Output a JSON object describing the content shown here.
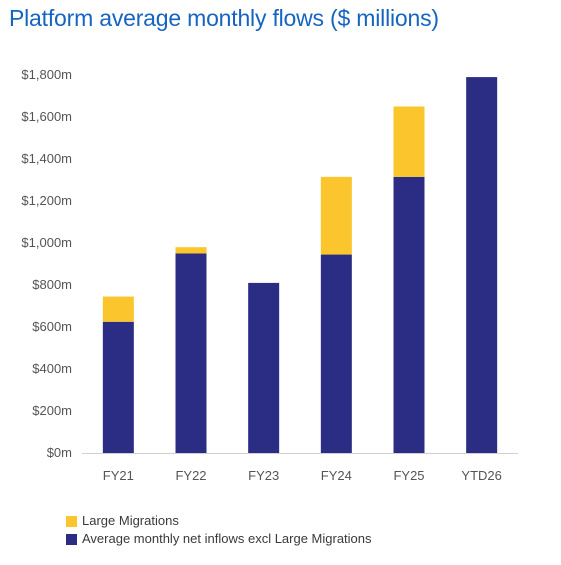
{
  "chart_data": {
    "type": "bar",
    "stacked": true,
    "title": "Platform average monthly flows ($ millions)",
    "categories": [
      "FY21",
      "FY22",
      "FY23",
      "FY24",
      "FY25",
      "YTD26"
    ],
    "series": [
      {
        "name": "Average monthly net inflows excl Large Migrations",
        "color": "#2b2d84",
        "values": [
          625,
          950,
          810,
          945,
          1315,
          1790
        ]
      },
      {
        "name": "Large Migrations",
        "color": "#fbc52d",
        "values": [
          120,
          30,
          0,
          370,
          335,
          0
        ]
      }
    ],
    "ylim": [
      0,
      1800
    ],
    "yticks": [
      0,
      200,
      400,
      600,
      800,
      1000,
      1200,
      1400,
      1600,
      1800
    ],
    "ytick_labels": [
      "$0m",
      "$200m",
      "$400m",
      "$600m",
      "$800m",
      "$1,000m",
      "$1,200m",
      "$1,400m",
      "$1,600m",
      "$1,800m"
    ],
    "xlabel": "",
    "ylabel": "",
    "grid": false,
    "legend_position": "bottom-left",
    "title_color": "#1565c0",
    "axis_color": "#d0d0d0",
    "tick_label_color": "#555555"
  }
}
